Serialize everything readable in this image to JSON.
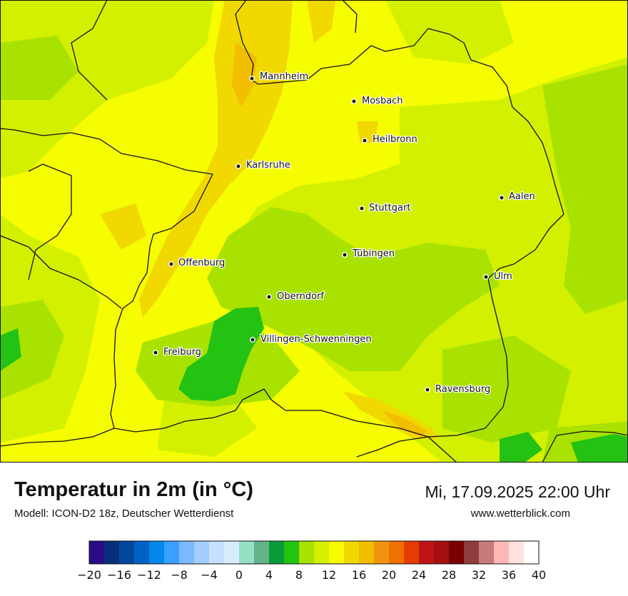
{
  "map": {
    "cities": [
      {
        "name": "Mannheim"
      },
      {
        "name": "Mosbach"
      },
      {
        "name": "Heilbronn"
      },
      {
        "name": "Karlsruhe"
      },
      {
        "name": "Aalen"
      },
      {
        "name": "Stuttgart"
      },
      {
        "name": "Tübingen"
      },
      {
        "name": "Offenburg"
      },
      {
        "name": "Ulm"
      },
      {
        "name": "Oberndorf"
      },
      {
        "name": "Villingen-Schwenningen"
      },
      {
        "name": "Freiburg"
      },
      {
        "name": "Ravensburg"
      }
    ],
    "colors": {
      "yellow": "#f5fd00",
      "yellow_green": "#d2f000",
      "light_green": "#a9e200",
      "green": "#23c213",
      "orange": "#f0d800",
      "dark_orange": "#f2a400"
    }
  },
  "footer": {
    "title": "Temperatur in 2m (in °C)",
    "subtitle": "Modell: ICON-D2 18z, Deutscher Wetterdienst",
    "datetime": "Mi, 17.09.2025 22:00 Uhr",
    "website": "www.wetterblick.com"
  },
  "legend": {
    "min": -20,
    "max": 40,
    "step": 2,
    "tick_labels": [
      "−20",
      "−16",
      "−12",
      "−8",
      "−4",
      "0",
      "4",
      "8",
      "12",
      "16",
      "20",
      "24",
      "28",
      "32",
      "36",
      "40"
    ],
    "colors": [
      "#2a0a86",
      "#08307a",
      "#00479c",
      "#0063c4",
      "#0586ea",
      "#3aa0ff",
      "#7ab9ff",
      "#a3ceff",
      "#c6e1ff",
      "#d9ecff",
      "#96e0c4",
      "#62b48a",
      "#0a9b3a",
      "#22c412",
      "#a7e200",
      "#d2f000",
      "#f6fb00",
      "#f0d800",
      "#f2be00",
      "#f29310",
      "#f07000",
      "#e63c00",
      "#be1414",
      "#a50f0f",
      "#7a0000",
      "#8f3c3c",
      "#c87a7a",
      "#ffb6b6",
      "#ffe1e1"
    ]
  }
}
